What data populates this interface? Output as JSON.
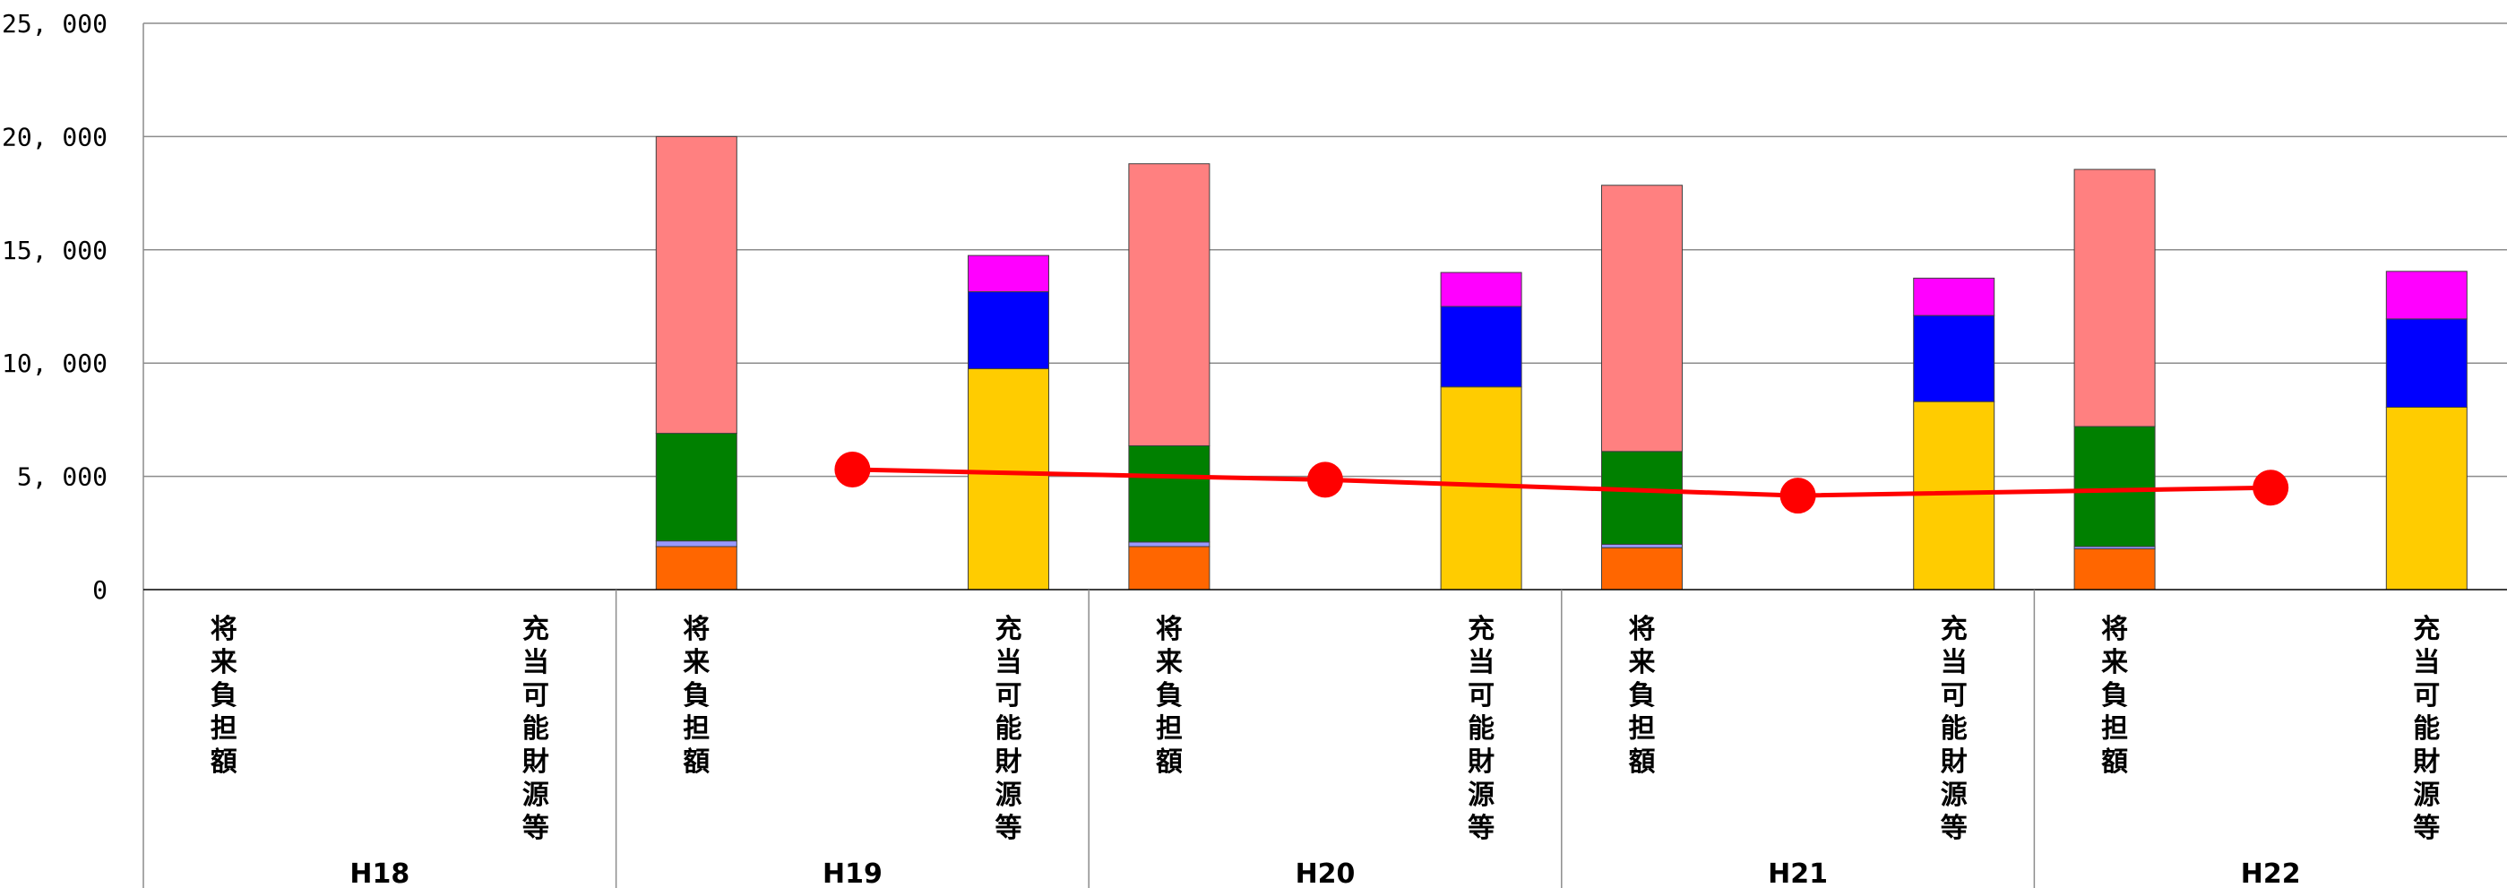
{
  "chart_data": {
    "type": "bar",
    "stacked": true,
    "ylim": [
      0,
      25000
    ],
    "yticks": [
      0,
      5000,
      10000,
      15000,
      20000,
      25000
    ],
    "ytick_labels": [
      "0",
      "5, 000",
      "10, 000",
      "15, 000",
      "20, 000",
      "25, 000"
    ],
    "grid": true,
    "groups": [
      "H18",
      "H19",
      "H20",
      "H21",
      "H22"
    ],
    "subcategories": [
      "将来負担額",
      "充当可能財源等"
    ],
    "future_burden_series": [
      {
        "color": "#ff6600",
        "values": [
          0,
          1900,
          1900,
          1850,
          1800
        ]
      },
      {
        "color": "#9999ff",
        "values": [
          0,
          250,
          200,
          150,
          100
        ]
      },
      {
        "color": "#008000",
        "values": [
          0,
          4750,
          4250,
          4100,
          5300
        ]
      },
      {
        "color": "#ff8080",
        "values": [
          0,
          13100,
          12450,
          11750,
          11350
        ]
      }
    ],
    "available_resources_series": [
      {
        "color": "#ffcc00",
        "values": [
          0,
          9750,
          8950,
          8300,
          8050
        ]
      },
      {
        "color": "#0000ff",
        "values": [
          0,
          3400,
          3550,
          3800,
          3900
        ]
      },
      {
        "color": "#ff00ff",
        "values": [
          0,
          1600,
          1500,
          1650,
          2100
        ]
      }
    ],
    "line_series": {
      "color": "#ff0000",
      "groups": [
        "H19",
        "H20",
        "H21",
        "H22"
      ],
      "values": [
        5300,
        4850,
        4150,
        4500
      ]
    }
  }
}
